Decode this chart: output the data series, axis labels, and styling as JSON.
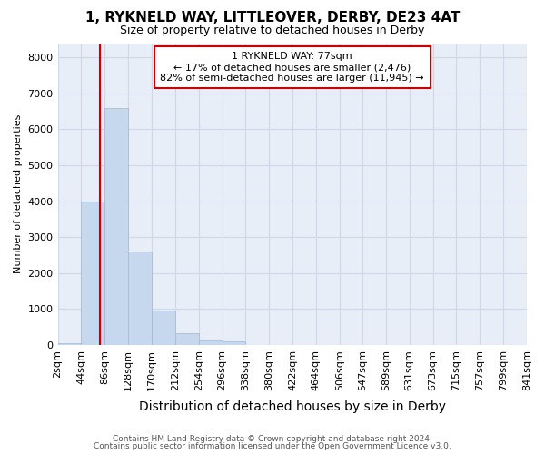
{
  "title1": "1, RYKNELD WAY, LITTLEOVER, DERBY, DE23 4AT",
  "title2": "Size of property relative to detached houses in Derby",
  "xlabel": "Distribution of detached houses by size in Derby",
  "ylabel": "Number of detached properties",
  "footnote1": "Contains HM Land Registry data © Crown copyright and database right 2024.",
  "footnote2": "Contains public sector information licensed under the Open Government Licence v3.0.",
  "annotation_line1": "1 RYKNELD WAY: 77sqm",
  "annotation_line2": "← 17% of detached houses are smaller (2,476)",
  "annotation_line3": "82% of semi-detached houses are larger (11,945) →",
  "property_size": 77,
  "bin_edges": [
    2,
    44,
    86,
    128,
    170,
    212,
    254,
    296,
    338,
    380,
    422,
    464,
    506,
    547,
    589,
    631,
    673,
    715,
    757,
    799,
    841
  ],
  "bar_heights": [
    50,
    4000,
    6600,
    2600,
    950,
    330,
    150,
    100,
    0,
    0,
    0,
    0,
    0,
    0,
    0,
    0,
    0,
    0,
    0,
    0
  ],
  "bar_color": "#c5d8ed",
  "bar_edge_color": "#a0b8d8",
  "red_line_color": "#cc0000",
  "annotation_box_color": "#cc0000",
  "grid_color": "#d0d8e8",
  "background_color": "#e8eef8",
  "ylim": [
    0,
    8400
  ],
  "yticks": [
    0,
    1000,
    2000,
    3000,
    4000,
    5000,
    6000,
    7000,
    8000
  ],
  "title1_fontsize": 11,
  "title2_fontsize": 9,
  "xlabel_fontsize": 10,
  "ylabel_fontsize": 8,
  "tick_fontsize": 8,
  "footnote_fontsize": 6.5
}
